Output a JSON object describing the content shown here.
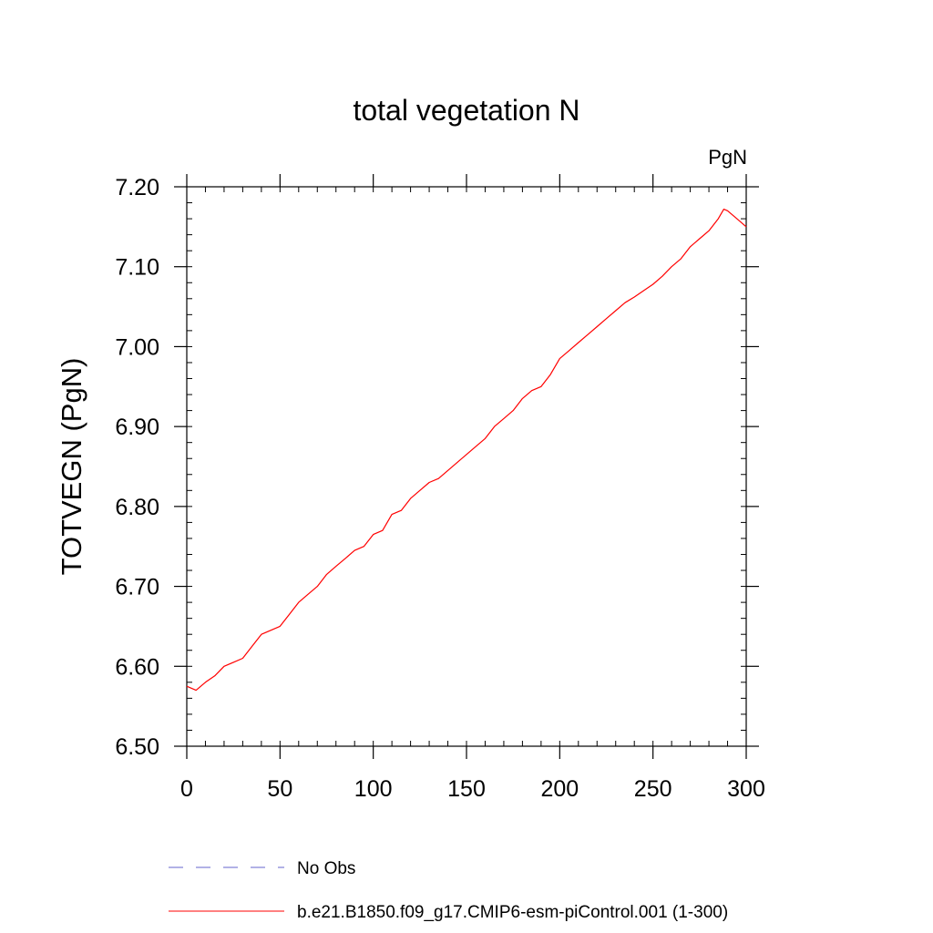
{
  "chart_data": {
    "type": "line",
    "title": "total vegetation N",
    "units_label": "PgN",
    "ylabel": "TOTVEGN  (PgN)",
    "xlabel": "",
    "xlim": [
      0,
      300
    ],
    "ylim": [
      6.5,
      7.2
    ],
    "x_ticks": [
      0,
      50,
      100,
      150,
      200,
      250,
      300
    ],
    "x_tick_labels": [
      "0",
      "50",
      "100",
      "150",
      "200",
      "250",
      "300"
    ],
    "y_ticks": [
      6.5,
      6.6,
      6.7,
      6.8,
      6.9,
      7.0,
      7.1,
      7.2
    ],
    "y_tick_labels": [
      "6.50",
      "6.60",
      "6.70",
      "6.80",
      "6.90",
      "7.00",
      "7.10",
      "7.20"
    ],
    "grid": false,
    "legend": [
      {
        "label": "No Obs",
        "color": "#6666cc",
        "style": "dashed"
      },
      {
        "label": "b.e21.B1850.f09_g17.CMIP6-esm-piControl.001 (1-300)",
        "color": "#ff0000",
        "style": "solid"
      }
    ],
    "series": [
      {
        "name": "b.e21.B1850.f09_g17.CMIP6-esm-piControl.001 (1-300)",
        "color": "#ff0000",
        "x": [
          0,
          5,
          10,
          15,
          20,
          25,
          30,
          35,
          40,
          45,
          50,
          55,
          60,
          65,
          70,
          75,
          80,
          85,
          90,
          95,
          100,
          105,
          110,
          115,
          120,
          125,
          130,
          135,
          140,
          145,
          150,
          155,
          160,
          165,
          170,
          175,
          180,
          185,
          190,
          195,
          200,
          205,
          210,
          215,
          220,
          225,
          230,
          235,
          240,
          245,
          250,
          255,
          260,
          265,
          270,
          275,
          280,
          285,
          288,
          290,
          295,
          300
        ],
        "values": [
          6.575,
          6.57,
          6.58,
          6.588,
          6.6,
          6.605,
          6.61,
          6.625,
          6.64,
          6.645,
          6.65,
          6.665,
          6.68,
          6.69,
          6.7,
          6.715,
          6.725,
          6.735,
          6.745,
          6.75,
          6.765,
          6.77,
          6.79,
          6.795,
          6.81,
          6.82,
          6.83,
          6.835,
          6.845,
          6.855,
          6.865,
          6.875,
          6.885,
          6.9,
          6.91,
          6.92,
          6.935,
          6.945,
          6.95,
          6.965,
          6.985,
          6.995,
          7.005,
          7.015,
          7.025,
          7.035,
          7.045,
          7.055,
          7.062,
          7.07,
          7.078,
          7.088,
          7.1,
          7.11,
          7.125,
          7.135,
          7.145,
          7.16,
          7.172,
          7.17,
          7.16,
          7.15
        ]
      },
      {
        "name": "No Obs",
        "color": "#6666cc",
        "x": [],
        "values": []
      }
    ]
  }
}
